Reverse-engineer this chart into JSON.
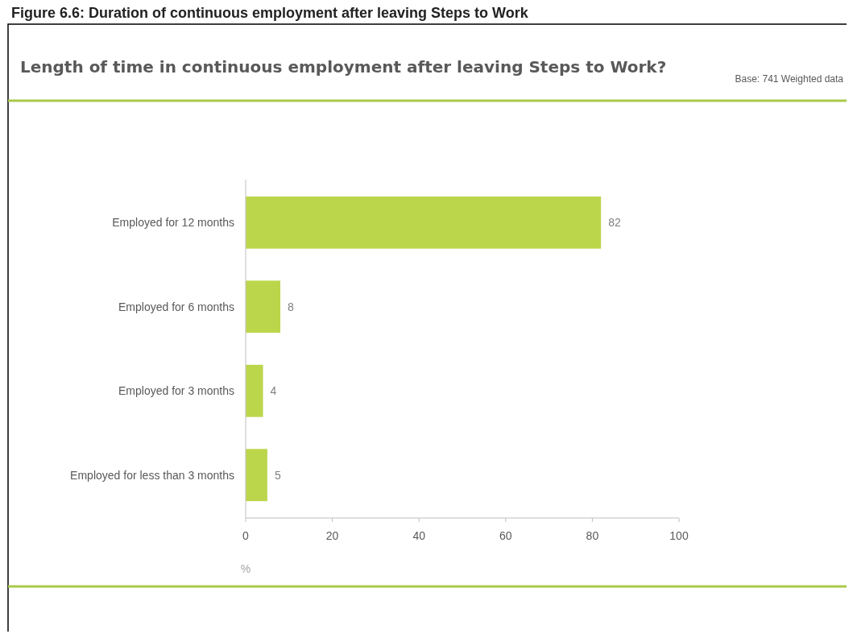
{
  "chart_data": {
    "type": "bar",
    "orientation": "horizontal",
    "title": "Figure 6.6: Duration of continuous employment after leaving Steps to Work",
    "subtitle": "Length of time in continuous employment after leaving Steps to Work?",
    "annotations": [
      "Base: 741 Weighted data"
    ],
    "categories": [
      "Employed for 12 months",
      "Employed for 6 months",
      "Employed for 3 months",
      "Employed for less than 3 months"
    ],
    "values": [
      82,
      8,
      4,
      5
    ],
    "color": "#bcd64b",
    "xlim": [
      0,
      100
    ],
    "xticks": [
      0,
      20,
      40,
      60,
      80,
      100
    ],
    "xlabel": "%",
    "data_labels": true,
    "grid": false
  }
}
